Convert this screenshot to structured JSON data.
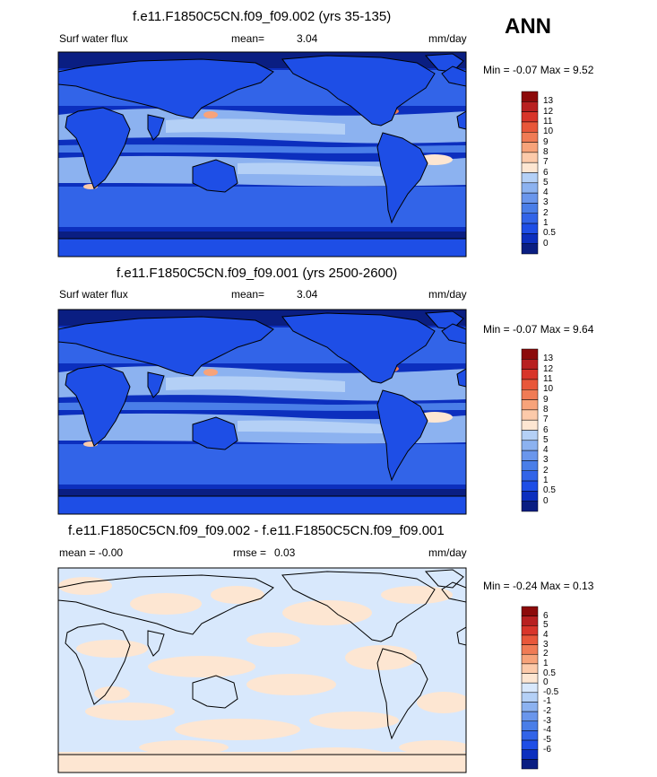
{
  "season": "ANN",
  "colors": {
    "seq": [
      "#0a1e82",
      "#0c2fbe",
      "#1e4ee6",
      "#3264e8",
      "#4a7ee8",
      "#6a96ec",
      "#8cb2f0",
      "#b4d0f6",
      "#fde6d2",
      "#fccaaa",
      "#f7a37a",
      "#f07b55",
      "#e8573a",
      "#d8352a",
      "#b82020",
      "#8c0a0a"
    ],
    "diff": [
      "#0a1e82",
      "#0c2fbe",
      "#1e4ee6",
      "#3264e8",
      "#4a7ee8",
      "#6a96ec",
      "#8cb2f0",
      "#b4d0f6",
      "#d8e8fc",
      "#fde6d2",
      "#fccaaa",
      "#f7a37a",
      "#f07b55",
      "#e8573a",
      "#d8352a",
      "#b82020",
      "#8c0a0a"
    ]
  },
  "panels": [
    {
      "title": "f.e11.F1850C5CN.f09_f09.002 (yrs 35-135)",
      "left_label": "Surf water flux",
      "center_label": "mean=",
      "center_value": "3.04",
      "units": "mm/day",
      "minmax": "Min =  -0.07 Max =    9.52",
      "colorbar_labels": [
        "13",
        "12",
        "11",
        "10",
        "9",
        "8",
        "7",
        "6",
        "5",
        "4",
        "3",
        "2",
        "1",
        "0.5",
        "0"
      ]
    },
    {
      "title": "f.e11.F1850C5CN.f09_f09.001 (yrs 2500-2600)",
      "left_label": "Surf water flux",
      "center_label": "mean=",
      "center_value": "3.04",
      "units": "mm/day",
      "minmax": "Min =  -0.07 Max =    9.64",
      "colorbar_labels": [
        "13",
        "12",
        "11",
        "10",
        "9",
        "8",
        "7",
        "6",
        "5",
        "4",
        "3",
        "2",
        "1",
        "0.5",
        "0"
      ]
    },
    {
      "title": "f.e11.F1850C5CN.f09_f09.002 - f.e11.F1850C5CN.f09_f09.001",
      "left_label": "mean =  -0.00",
      "center_label": "rmse =",
      "center_value": "0.03",
      "units": "mm/day",
      "minmax": "Min =  -0.24 Max =   0.13",
      "colorbar_labels": [
        "6",
        "5",
        "4",
        "3",
        "2",
        "1",
        "0.5",
        "0",
        "-0.5",
        "-1",
        "-2",
        "-3",
        "-4",
        "-5",
        "-6"
      ]
    }
  ],
  "chart_data": [
    {
      "type": "heatmap",
      "title": "f.e11.F1850C5CN.f09_f09.002 (yrs 35-135)",
      "variable": "Surf water flux",
      "units": "mm/day",
      "mean": 3.04,
      "min": -0.07,
      "max": 9.52,
      "colorbar_levels": [
        0,
        0.5,
        1,
        2,
        3,
        4,
        5,
        6,
        7,
        8,
        9,
        10,
        11,
        12,
        13
      ],
      "map": "global, Pacific-centered"
    },
    {
      "type": "heatmap",
      "title": "f.e11.F1850C5CN.f09_f09.001 (yrs 2500-2600)",
      "variable": "Surf water flux",
      "units": "mm/day",
      "mean": 3.04,
      "min": -0.07,
      "max": 9.64,
      "colorbar_levels": [
        0,
        0.5,
        1,
        2,
        3,
        4,
        5,
        6,
        7,
        8,
        9,
        10,
        11,
        12,
        13
      ],
      "map": "global, Pacific-centered"
    },
    {
      "type": "heatmap",
      "title": "f.e11.F1850C5CN.f09_f09.002 - f.e11.F1850C5CN.f09_f09.001",
      "units": "mm/day",
      "mean": -0.0,
      "rmse": 0.03,
      "min": -0.24,
      "max": 0.13,
      "colorbar_levels": [
        -6,
        -5,
        -4,
        -3,
        -2,
        -1,
        -0.5,
        0,
        0.5,
        1,
        2,
        3,
        4,
        5,
        6
      ],
      "map": "global, Pacific-centered"
    }
  ]
}
